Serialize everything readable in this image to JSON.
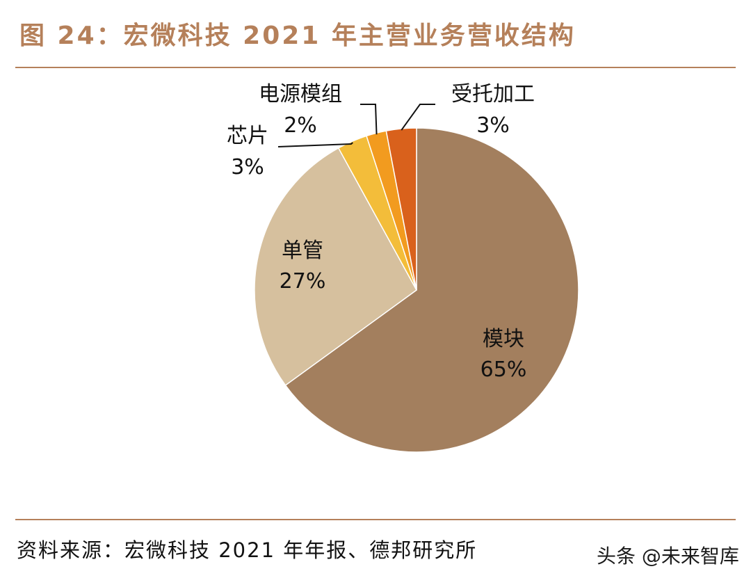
{
  "header": {
    "title": "图 24：宏微科技 2021 年主营业务营收结构"
  },
  "chart_data": {
    "type": "pie",
    "title": "宏微科技 2021 年主营业务营收结构",
    "slices": [
      {
        "label": "模块",
        "value": 65,
        "value_text": "65%",
        "color": "#a37f5e"
      },
      {
        "label": "单管",
        "value": 27,
        "value_text": "27%",
        "color": "#d6c09e"
      },
      {
        "label": "芯片",
        "value": 3,
        "value_text": "3%",
        "color": "#f3bd3a"
      },
      {
        "label": "电源模组",
        "value": 2,
        "value_text": "2%",
        "color": "#f29b1f"
      },
      {
        "label": "受托加工",
        "value": 3,
        "value_text": "3%",
        "color": "#d9611c"
      }
    ],
    "start": "12 o'clock",
    "direction": "clockwise"
  },
  "footer": {
    "source": "资料来源：宏微科技 2021 年年报、德邦研究所",
    "watermark": "头条 @未来智库"
  }
}
